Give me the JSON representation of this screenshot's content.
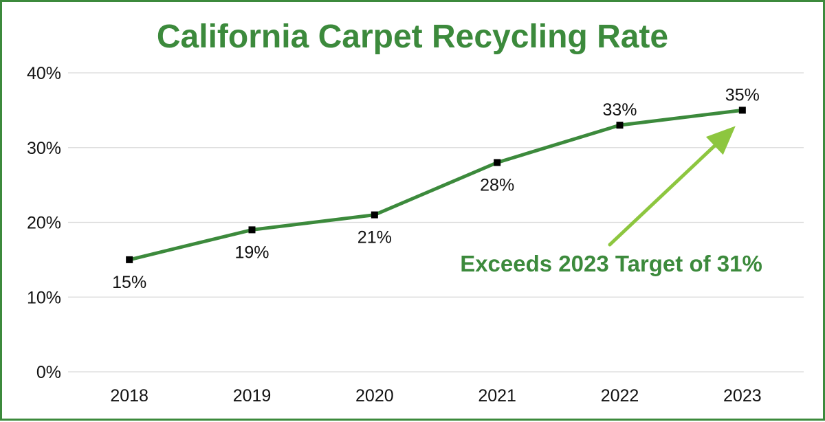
{
  "colors": {
    "frame": "#3c8a3c",
    "title": "#3c8a3c",
    "line": "#3c8a3c",
    "marker": "#000000",
    "grid": "#d9d9d9",
    "arrow": "#8dc63f",
    "annotation": "#3c8a3c"
  },
  "chart_data": {
    "type": "line",
    "title": "California Carpet Recycling Rate",
    "xlabel": "",
    "ylabel": "",
    "x": [
      "2018",
      "2019",
      "2020",
      "2021",
      "2022",
      "2023"
    ],
    "series": [
      {
        "values": [
          15,
          19,
          21,
          28,
          33,
          35
        ],
        "labels": [
          "15%",
          "19%",
          "21%",
          "28%",
          "33%",
          "35%"
        ]
      }
    ],
    "ylim": [
      0,
      40
    ],
    "yticks": [
      {
        "value": 0,
        "label": "0%"
      },
      {
        "value": 10,
        "label": "10%"
      },
      {
        "value": 20,
        "label": "20%"
      },
      {
        "value": 30,
        "label": "30%"
      },
      {
        "value": 40,
        "label": "40%"
      }
    ],
    "grid": true,
    "legend": "none",
    "marker": "square",
    "annotation": {
      "text": "Exceeds 2023 Target of 31%",
      "arrow_to": "2023"
    }
  }
}
